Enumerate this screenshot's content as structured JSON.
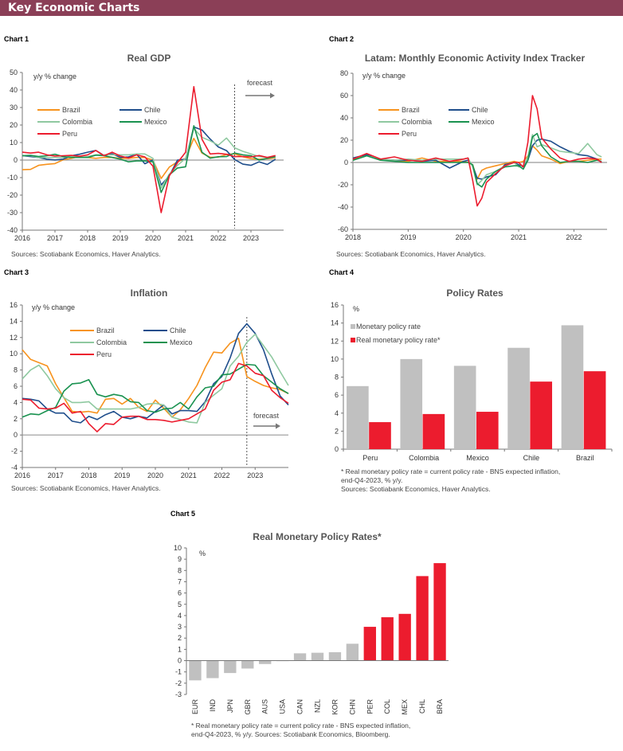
{
  "header": {
    "title": "Key Economic Charts"
  },
  "colors": {
    "header": "#8b3f57",
    "brazil": "#f7931e",
    "chile": "#1f4e8c",
    "colombia": "#8fc9a0",
    "mexico": "#1a9250",
    "peru": "#ec1c2e",
    "grey_bar": "#c0c0c0"
  },
  "chart_data": [
    {
      "label": "Chart 1",
      "type": "line",
      "title": "Real GDP",
      "ylabel": "y/y % change",
      "source": "Sources: Scotiabank Economics, Haver Analytics.",
      "forecast_label": "forecast",
      "forecast_start": "2022Q3",
      "ylim": [
        -40,
        50
      ],
      "yticks": [
        "50",
        "40",
        "30",
        "20",
        "10",
        "0",
        "-10",
        "-20",
        "-30",
        "-40"
      ],
      "xticks": [
        "2016",
        "2017",
        "2018",
        "2019",
        "2020",
        "2021",
        "2022",
        "2023"
      ],
      "x": [
        "2016Q1",
        "2016Q2",
        "2016Q3",
        "2016Q4",
        "2017Q1",
        "2017Q2",
        "2017Q3",
        "2017Q4",
        "2018Q1",
        "2018Q2",
        "2018Q3",
        "2018Q4",
        "2019Q1",
        "2019Q2",
        "2019Q3",
        "2019Q4",
        "2020Q1",
        "2020Q2",
        "2020Q3",
        "2020Q4",
        "2021Q1",
        "2021Q2",
        "2021Q3",
        "2021Q4",
        "2022Q1",
        "2022Q2",
        "2022Q3",
        "2022Q4",
        "2023Q1",
        "2023Q2",
        "2023Q3",
        "2023Q4"
      ],
      "series": [
        {
          "name": "Brazil",
          "color": "#f7931e",
          "values": [
            -5.5,
            -5.3,
            -3,
            -2.4,
            -2,
            0.2,
            1,
            2,
            1.5,
            1,
            1.5,
            1.5,
            1,
            1,
            1.5,
            1.5,
            0,
            -10.5,
            -4,
            -1,
            1,
            12.4,
            4,
            1.6,
            1.7,
            3.2,
            3.6,
            1.9,
            0.8,
            0.5,
            0.8,
            1.2
          ]
        },
        {
          "name": "Chile",
          "color": "#1f4e8c",
          "values": [
            2.5,
            2,
            1.5,
            0.5,
            0.1,
            0.5,
            2.5,
            3.3,
            4.5,
            5.5,
            2.6,
            3.6,
            1.5,
            1.8,
            3.3,
            -2.1,
            0.2,
            -14.2,
            -9,
            0,
            0.5,
            18.9,
            17.2,
            12,
            7.5,
            5.4,
            0.3,
            -2.3,
            -3,
            -1,
            -2.5,
            0.5
          ]
        },
        {
          "name": "Colombia",
          "color": "#8fc9a0",
          "values": [
            2.5,
            2.5,
            1.5,
            1.5,
            1.5,
            1.5,
            2,
            1.5,
            2,
            3,
            3,
            3,
            3,
            3,
            3.5,
            3.5,
            1,
            -16,
            -8,
            -3,
            1,
            18,
            13,
            11,
            8.5,
            12.6,
            7,
            5,
            3.5,
            2,
            1.5,
            1.5
          ]
        },
        {
          "name": "Mexico",
          "color": "#1a9250",
          "values": [
            2.5,
            2.7,
            2,
            2.5,
            3.3,
            2,
            1.5,
            1.5,
            1.5,
            2.8,
            2.5,
            1.5,
            0.5,
            -1,
            -0.5,
            -0.5,
            -1,
            -18.5,
            -8.5,
            -4.5,
            -3.8,
            19.6,
            4.5,
            1.1,
            1.9,
            2,
            4,
            3,
            2.5,
            0,
            1,
            2
          ]
        },
        {
          "name": "Peru",
          "color": "#ec1c2e",
          "values": [
            4.5,
            4,
            4.5,
            3,
            2.3,
            2.5,
            2.7,
            2.2,
            3,
            5.5,
            2.5,
            4.5,
            2.3,
            1.2,
            3,
            1.8,
            -3.5,
            -30,
            -9,
            -1.5,
            4.5,
            41.9,
            11.9,
            3.5,
            3.8,
            3.3,
            2,
            2,
            1.8,
            2.6,
            1.5,
            2.6
          ]
        }
      ],
      "legend": "upper-left, two columns",
      "grid": false
    },
    {
      "label": "Chart 2",
      "type": "line",
      "title": "Latam: Monthly Economic Activity Index Tracker",
      "ylabel": "y/y % change",
      "source": "Sources: Scotiabank Economics, Haver Analytics.",
      "ylim": [
        -60,
        80
      ],
      "yticks": [
        "80",
        "60",
        "40",
        "20",
        "0",
        "-20",
        "-40",
        "-60"
      ],
      "xticks": [
        "2018",
        "2019",
        "2020",
        "2021",
        "2022"
      ],
      "x": [
        "2018-01",
        "2018-04",
        "2018-07",
        "2018-10",
        "2019-01",
        "2019-04",
        "2019-07",
        "2019-10",
        "2020-01",
        "2020-02",
        "2020-03",
        "2020-04",
        "2020-05",
        "2020-06",
        "2020-08",
        "2020-10",
        "2020-12",
        "2021-01",
        "2021-02",
        "2021-03",
        "2021-04",
        "2021-05",
        "2021-06",
        "2021-08",
        "2021-10",
        "2021-12",
        "2022-02",
        "2022-04",
        "2022-06",
        "2022-07"
      ],
      "series": [
        {
          "name": "Brazil",
          "color": "#f7931e",
          "values": [
            2,
            7,
            2,
            2,
            1,
            4,
            1,
            1,
            1,
            0,
            -2,
            -15,
            -7,
            -5,
            -3,
            -1,
            1,
            0,
            1,
            6,
            15,
            11,
            6,
            3,
            -1,
            1,
            1,
            2,
            3,
            3
          ]
        },
        {
          "name": "Chile",
          "color": "#1f4e8c",
          "values": [
            4,
            7,
            3,
            2,
            2,
            1,
            2,
            -5,
            1,
            2,
            -3,
            -14,
            -15,
            -13,
            -11,
            -2,
            0,
            -2,
            -4,
            2,
            15,
            20,
            21,
            19,
            14,
            10,
            7,
            6,
            3,
            0
          ]
        },
        {
          "name": "Colombia",
          "color": "#8fc9a0",
          "values": [
            2,
            6,
            3,
            2,
            3,
            2,
            3,
            3,
            3,
            4,
            -4,
            -20,
            -16,
            -11,
            -8,
            -3,
            0,
            -4,
            -3,
            5,
            25,
            14,
            16,
            13,
            10,
            9,
            8,
            17,
            7,
            5
          ]
        },
        {
          "name": "Mexico",
          "color": "#1a9250",
          "values": [
            2,
            6,
            2,
            1,
            0,
            0,
            0,
            0,
            0,
            0,
            -2,
            -19,
            -22,
            -15,
            -8,
            -4,
            -3,
            -3,
            -6,
            2,
            23,
            26,
            15,
            5,
            0,
            1,
            1,
            0,
            2,
            1
          ]
        },
        {
          "name": "Peru",
          "color": "#ec1c2e",
          "values": [
            3,
            8,
            3,
            5,
            2,
            1,
            4,
            1,
            3,
            4,
            -16,
            -39,
            -32,
            -18,
            -10,
            -3,
            0,
            0,
            -4,
            18,
            60,
            48,
            22,
            12,
            4,
            1,
            3,
            4,
            3,
            0
          ]
        }
      ],
      "legend": "upper-left, two columns",
      "grid": false
    },
    {
      "label": "Chart 3",
      "type": "line",
      "title": "Inflation",
      "ylabel": "y/y % change",
      "source": "Sources: Scotiabank Economics, Haver Analytics.",
      "forecast_label": "forecast",
      "forecast_start": "2022Q4",
      "ylim": [
        -4,
        16
      ],
      "yticks": [
        "16",
        "14",
        "12",
        "10",
        "8",
        "6",
        "4",
        "2",
        "0",
        "-2",
        "-4"
      ],
      "xticks": [
        "2016",
        "2017",
        "2018",
        "2019",
        "2020",
        "2021",
        "2022",
        "2023"
      ],
      "x": [
        "2016Q1",
        "2016Q2",
        "2016Q3",
        "2016Q4",
        "2017Q1",
        "2017Q2",
        "2017Q3",
        "2017Q4",
        "2018Q1",
        "2018Q2",
        "2018Q3",
        "2018Q4",
        "2019Q1",
        "2019Q2",
        "2019Q3",
        "2019Q4",
        "2020Q1",
        "2020Q2",
        "2020Q3",
        "2020Q4",
        "2021Q1",
        "2021Q2",
        "2021Q3",
        "2021Q4",
        "2022Q1",
        "2022Q2",
        "2022Q3",
        "2022Q4",
        "2023Q1",
        "2023Q2",
        "2023Q3",
        "2023Q4",
        "2024Q1"
      ],
      "series": [
        {
          "name": "Brazil",
          "color": "#f7931e",
          "values": [
            10.5,
            9.3,
            8.9,
            8.5,
            6.3,
            4.6,
            2.9,
            2.8,
            2.9,
            2.7,
            4.4,
            4.5,
            3.8,
            4.5,
            3.4,
            2.9,
            4.3,
            3.3,
            2.2,
            3.1,
            4.5,
            6.1,
            8.3,
            10.2,
            10.1,
            11.3,
            11.9,
            7.2,
            6.6,
            6.1,
            5.8,
            5.6,
            5.1
          ]
        },
        {
          "name": "Chile",
          "color": "#1f4e8c",
          "values": [
            4.5,
            4.4,
            4.2,
            3.2,
            2.7,
            2.7,
            1.7,
            1.5,
            2.3,
            1.9,
            2.5,
            2.9,
            2.2,
            2.0,
            2.3,
            2.1,
            2.9,
            3.7,
            2.6,
            3.0,
            3.0,
            2.9,
            4.1,
            6.3,
            7.2,
            9.5,
            12.5,
            13.7,
            12.5,
            10.5,
            7.5,
            4.8,
            3.7
          ]
        },
        {
          "name": "Colombia",
          "color": "#8fc9a0",
          "values": [
            6.9,
            8.0,
            8.6,
            7.3,
            5.7,
            4.6,
            4.0,
            4.0,
            4.1,
            3.2,
            3.2,
            3.2,
            3.2,
            3.2,
            3.4,
            3.8,
            3.9,
            3.7,
            2.2,
            1.9,
            1.6,
            1.5,
            4.0,
            4.9,
            5.7,
            8.5,
            9.7,
            11.4,
            12.4,
            11.0,
            9.6,
            7.8,
            6.1
          ]
        },
        {
          "name": "Mexico",
          "color": "#1a9250",
          "values": [
            2.2,
            2.6,
            2.5,
            3.0,
            3.4,
            5.4,
            6.3,
            6.4,
            6.8,
            5.0,
            4.7,
            5.0,
            4.8,
            4.1,
            4.0,
            3.0,
            2.8,
            3.2,
            3.3,
            4.0,
            3.2,
            4.7,
            5.8,
            6.0,
            7.4,
            7.5,
            8.1,
            8.7,
            8.6,
            7.3,
            6.5,
            5.7,
            5.1
          ]
        },
        {
          "name": "Peru",
          "color": "#ec1c2e",
          "values": [
            4.4,
            4.3,
            3.3,
            3.2,
            3.3,
            3.9,
            2.7,
            2.9,
            1.4,
            0.4,
            1.4,
            1.3,
            2.2,
            2.3,
            2.3,
            1.9,
            1.9,
            1.8,
            1.6,
            1.8,
            2.0,
            2.6,
            3.2,
            5.5,
            6.5,
            6.8,
            8.8,
            8.5,
            7.6,
            7.3,
            5.5,
            4.6,
            3.9
          ]
        }
      ],
      "legend": "upper-center, two columns",
      "grid": false
    },
    {
      "label": "Chart 4",
      "type": "bar",
      "title": "Policy Rates",
      "ylabel": "%",
      "ylim": [
        0,
        16
      ],
      "yticks": [
        "16",
        "14",
        "12",
        "10",
        "8",
        "6",
        "4",
        "2",
        "0"
      ],
      "categories": [
        "Peru",
        "Colombia",
        "Mexico",
        "Chile",
        "Brazil"
      ],
      "series": [
        {
          "name": "Monetary policy rate",
          "color": "#c0c0c0",
          "values": [
            7.0,
            10.0,
            9.25,
            11.25,
            13.75
          ]
        },
        {
          "name": "Real monetary policy rate*",
          "color": "#ec1c2e",
          "values": [
            3.0,
            3.9,
            4.15,
            7.5,
            8.65
          ]
        }
      ],
      "notes": [
        "* Real monetary policy rate = current policy rate - BNS expected inflation,",
        "end-Q4-2023, % y/y.",
        "Sources: Scotiabank Economics, Haver Analytics."
      ],
      "legend": "upper-left",
      "grid": false
    },
    {
      "label": "Chart 5",
      "type": "bar",
      "title": "Real Monetary Policy Rates*",
      "ylabel": "%",
      "ylim": [
        -3,
        10
      ],
      "yticks": [
        "10",
        "9",
        "8",
        "7",
        "6",
        "5",
        "4",
        "3",
        "2",
        "1",
        "0",
        "-1",
        "-2",
        "-3"
      ],
      "categories": [
        "EUR",
        "IND",
        "JPN",
        "GBR",
        "AUS",
        "USA",
        "CAN",
        "NZL",
        "KOR",
        "CHN",
        "PER",
        "COL",
        "MEX",
        "CHL",
        "BRA"
      ],
      "values": [
        -1.75,
        -1.55,
        -1.1,
        -0.7,
        -0.3,
        0.0,
        0.65,
        0.7,
        0.75,
        1.5,
        3.0,
        3.85,
        4.15,
        7.5,
        8.65
      ],
      "bar_colors": [
        "#c0c0c0",
        "#c0c0c0",
        "#c0c0c0",
        "#c0c0c0",
        "#c0c0c0",
        "#c0c0c0",
        "#c0c0c0",
        "#c0c0c0",
        "#c0c0c0",
        "#c0c0c0",
        "#ec1c2e",
        "#ec1c2e",
        "#ec1c2e",
        "#ec1c2e",
        "#ec1c2e"
      ],
      "notes": [
        "* Real monetary policy rate = current policy rate - BNS expected inflation,",
        "end-Q4-2023, % y/y. Sources: Scotiabank Economics, Bloomberg."
      ],
      "grid": false
    }
  ]
}
